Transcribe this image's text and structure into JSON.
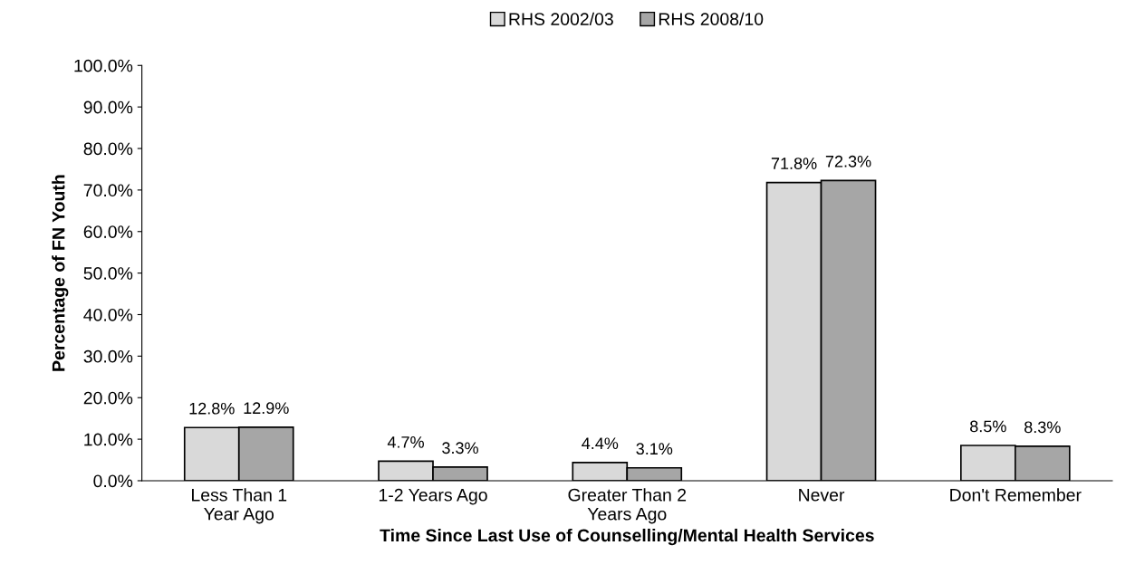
{
  "chart_data": {
    "type": "bar",
    "xlabel": "Time Since Last Use of Counselling/Mental Health Services",
    "ylabel": "Percentage of FN Youth",
    "categories": [
      "Less Than 1\nYear Ago",
      "1-2 Years Ago",
      "Greater Than 2\nYears Ago",
      "Never",
      "Don't Remember"
    ],
    "series": [
      {
        "name": "RHS 2002/03",
        "color": "#d9d9d9",
        "values": [
          12.8,
          4.7,
          4.4,
          71.8,
          8.5
        ],
        "value_labels": [
          "12.8%",
          "4.7%",
          "4.4%",
          "71.8%",
          "8.5%"
        ]
      },
      {
        "name": "RHS 2008/10",
        "color": "#a6a6a6",
        "values": [
          12.9,
          3.3,
          3.1,
          72.3,
          8.3
        ],
        "value_labels": [
          "12.9%",
          "3.3%",
          "3.1%",
          "72.3%",
          "8.3%"
        ]
      }
    ],
    "ylim": [
      0,
      100
    ],
    "yticks": [
      {
        "value": 0,
        "label": "0.0%"
      },
      {
        "value": 10,
        "label": "10.0%"
      },
      {
        "value": 20,
        "label": "20.0%"
      },
      {
        "value": 30,
        "label": "30.0%"
      },
      {
        "value": 40,
        "label": "40.0%"
      },
      {
        "value": 50,
        "label": "50.0%"
      },
      {
        "value": 60,
        "label": "60.0%"
      },
      {
        "value": 70,
        "label": "70.0%"
      },
      {
        "value": 80,
        "label": "80.0%"
      },
      {
        "value": 90,
        "label": "90.0%"
      },
      {
        "value": 100,
        "label": "100.0%"
      }
    ],
    "grid": false,
    "legend": "top"
  }
}
